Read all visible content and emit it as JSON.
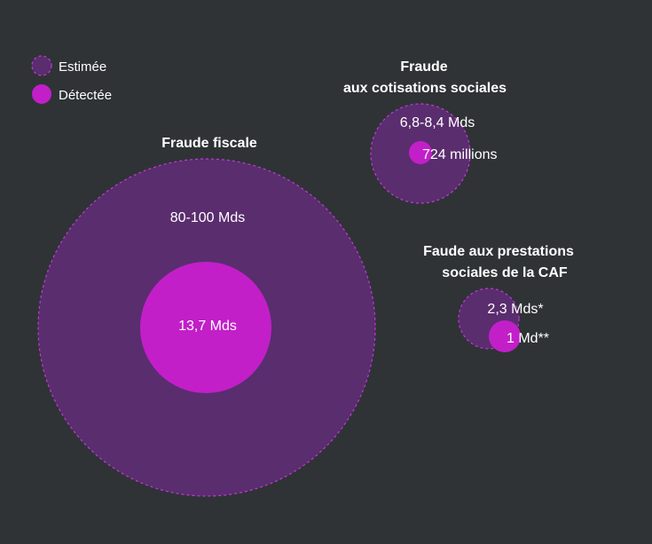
{
  "chart_data": {
    "type": "bubble",
    "legend": [
      {
        "label": "Estimée",
        "style": "estimated"
      },
      {
        "label": "Détectée",
        "style": "detected"
      }
    ],
    "legend_placement": "top-left",
    "groups": [
      {
        "title_lines": [
          "Fraude fiscale"
        ],
        "estimated_label": "80-100 Mds",
        "detected_label": "13,7 Mds",
        "estimated_value_mds": 90,
        "detected_value_mds": 13.7
      },
      {
        "title_lines": [
          "Fraude",
          "aux cotisations sociales"
        ],
        "estimated_label": "6,8-8,4 Mds",
        "detected_label": "724 millions",
        "estimated_value_mds": 7.6,
        "detected_value_mds": 0.724
      },
      {
        "title_lines": [
          "Faude aux prestations",
          "sociales de la CAF"
        ],
        "estimated_label": "2,3 Mds*",
        "detected_label": "1 Md**",
        "estimated_value_mds": 2.3,
        "detected_value_mds": 1
      }
    ]
  },
  "colors": {
    "background": "#2f3336",
    "estimated_fill": "#5a2d6e",
    "estimated_stroke": "#c03ad6",
    "detected_fill": "#c21fc9",
    "text": "#ffffff"
  }
}
